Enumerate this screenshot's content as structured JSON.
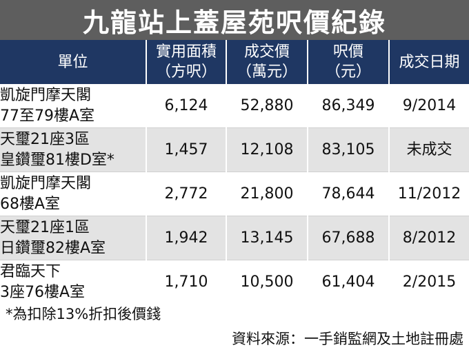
{
  "title": "九龍站上蓋屋苑呎價紀錄",
  "table": {
    "headers": [
      {
        "line1": "單位",
        "line2": ""
      },
      {
        "line1": "實用面積",
        "line2": "（方呎）"
      },
      {
        "line1": "成交價",
        "line2": "（萬元）"
      },
      {
        "line1": "呎價",
        "line2": "（元）"
      },
      {
        "line1": "成交日期",
        "line2": ""
      }
    ],
    "rows": [
      {
        "unit_line1": "凱旋門摩天閣",
        "unit_line2": "77至79樓A室",
        "area": "6,124",
        "price": "52,880",
        "psf": "86,349",
        "date": "9/2014"
      },
      {
        "unit_line1": "天璽21座3區",
        "unit_line2": "皇鑽璽81樓D室*",
        "area": "1,457",
        "price": "12,108",
        "psf": "83,105",
        "date": "未成交"
      },
      {
        "unit_line1": "凱旋門摩天閣",
        "unit_line2": "68樓A室",
        "area": "2,772",
        "price": "21,800",
        "psf": "78,644",
        "date": "11/2012"
      },
      {
        "unit_line1": "天璽21座1區",
        "unit_line2": "日鑽璽82樓A室",
        "area": "1,942",
        "price": "13,145",
        "psf": "67,688",
        "date": "8/2012"
      },
      {
        "unit_line1": "君臨天下",
        "unit_line2": "3座76樓A室",
        "area": "1,710",
        "price": "10,500",
        "psf": "61,404",
        "date": "2/2015"
      }
    ]
  },
  "footnote": "*為扣除13%折扣後價錢",
  "source": "資料來源：一手銷監網及土地註冊處",
  "colors": {
    "title_bar": "#5e5e5e",
    "header_bg": "#1f3763",
    "row_alt_bg": "#e3e3e3"
  }
}
